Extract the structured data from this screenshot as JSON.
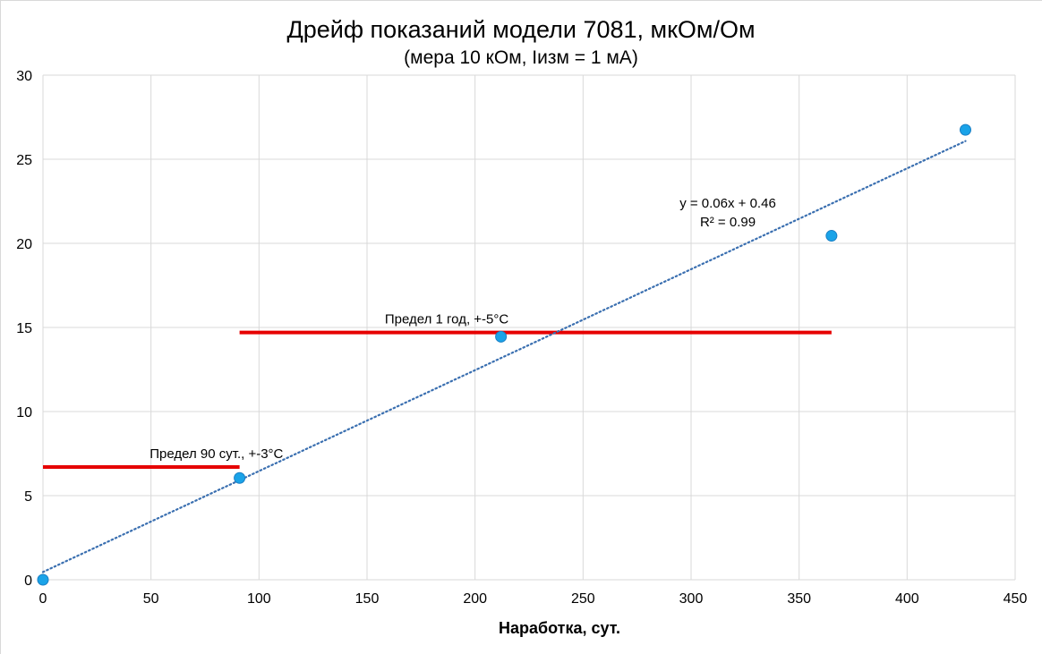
{
  "chart_data": {
    "type": "scatter",
    "title": "Дрейф показаний модели 7081, мкОм/Ом",
    "subtitle": "(мера 10 кОм, Iизм = 1 мА)",
    "xlabel": "Наработка, сут.",
    "ylabel": "",
    "xlim": [
      0,
      450
    ],
    "ylim": [
      0,
      30
    ],
    "xticks": [
      0,
      50,
      100,
      150,
      200,
      250,
      300,
      350,
      400,
      450
    ],
    "yticks": [
      0,
      5,
      10,
      15,
      20,
      25,
      30
    ],
    "grid": true,
    "series": [
      {
        "color": "#1aa3e8",
        "points": [
          {
            "x": 0,
            "y": 0
          },
          {
            "x": 91,
            "y": 6.05
          },
          {
            "x": 212,
            "y": 14.45
          },
          {
            "x": 365,
            "y": 20.45
          },
          {
            "x": 427,
            "y": 26.75
          }
        ]
      }
    ],
    "trendline": {
      "slope": 0.06,
      "intercept": 0.46,
      "x_range": [
        0,
        427
      ],
      "color": "#3a6fb0",
      "equation": "y = 0.06x + 0.46",
      "r2": "R² = 0.99"
    },
    "limits": [
      {
        "label": "Предел 90 сут., +-3°C",
        "y": 6.7,
        "x_range": [
          0,
          91
        ],
        "color": "#e60000"
      },
      {
        "label": "Предел 1 год, +-5°C",
        "y": 14.7,
        "x_range": [
          91,
          365
        ],
        "color": "#e60000"
      }
    ]
  }
}
